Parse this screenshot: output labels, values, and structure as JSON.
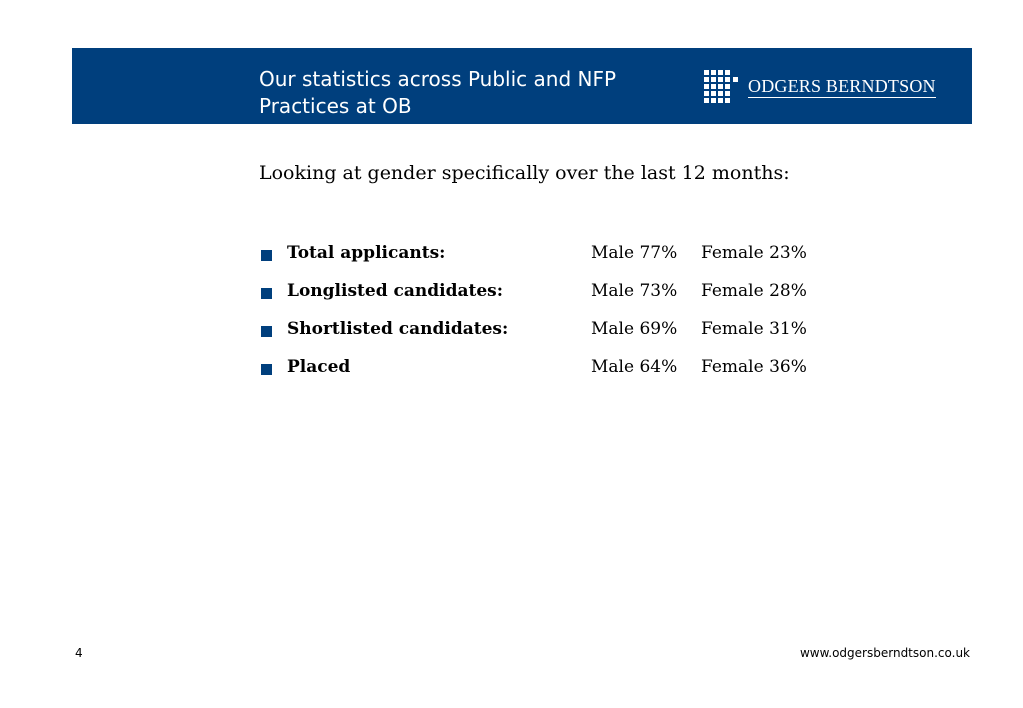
{
  "header": {
    "title": "Our statistics across Public and NFP Practices at OB",
    "logo_text": "ODGERS BERNDTSON",
    "logo_icon": "grid-logo-icon",
    "band_color": "#003f7d"
  },
  "intro": "Looking at gender specifically over the last 12 months:",
  "stats": [
    {
      "label": "Total applicants:",
      "male": "Male 77%",
      "female": "Female 23%"
    },
    {
      "label": "Longlisted candidates:",
      "male": "Male 73%",
      "female": "Female 28%"
    },
    {
      "label": "Shortlisted candidates:",
      "male": "Male 69%",
      "female": "Female 31%"
    },
    {
      "label": "Placed",
      "male": "Male 64%",
      "female": "Female 36%"
    }
  ],
  "footer": {
    "page_number": "4",
    "url": "www.odgersberndtson.co.uk"
  }
}
